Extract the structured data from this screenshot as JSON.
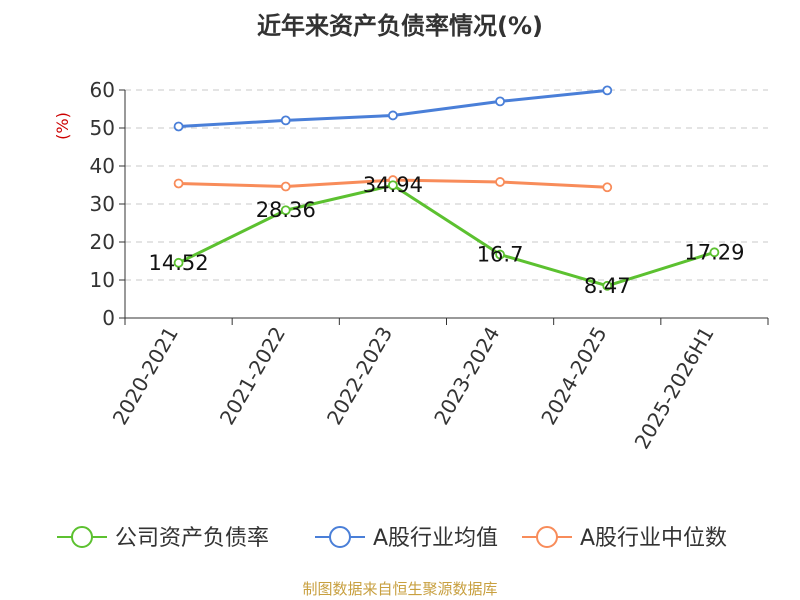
{
  "chart_data": {
    "type": "line",
    "title": "近年来资产负债率情况(%)",
    "ylabel": "(%)",
    "xlabel": "",
    "categories": [
      "2020-2021",
      "2021-2022",
      "2022-2023",
      "2023-2024",
      "2024-2025",
      "2025-2026H1"
    ],
    "ylim": [
      0,
      60
    ],
    "yticks": [
      0,
      10,
      20,
      30,
      40,
      50,
      60
    ],
    "grid": true,
    "legend_position": "bottom",
    "series": [
      {
        "name": "公司资产负债率",
        "color": "#5cc130",
        "values": [
          14.52,
          28.36,
          34.94,
          16.7,
          8.47,
          17.29
        ],
        "labels": [
          "14.52",
          "28.36",
          "34.94",
          "16.7",
          "8.47",
          "17.29"
        ]
      },
      {
        "name": "A股行业均值",
        "color": "#4a7fd8",
        "values": [
          50.4,
          52.0,
          53.3,
          57.0,
          59.9,
          null
        ]
      },
      {
        "name": "A股行业中位数",
        "color": "#f88c5a",
        "values": [
          35.4,
          34.6,
          36.3,
          35.8,
          34.4,
          null
        ]
      }
    ]
  },
  "source_note": "制图数据来自恒生聚源数据库"
}
